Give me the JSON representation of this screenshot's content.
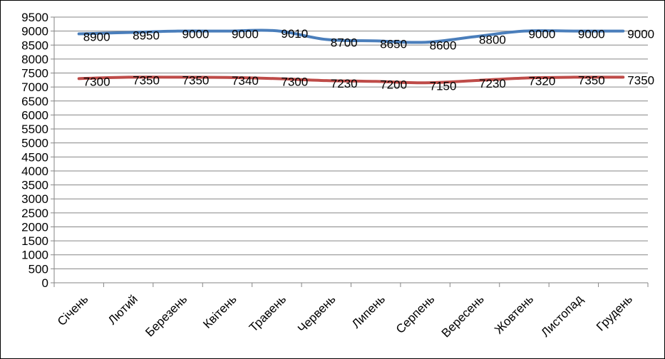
{
  "chart_data": {
    "type": "line",
    "categories": [
      "Січень",
      "Лютий",
      "Березень",
      "Квітень",
      "Травень",
      "Червень",
      "Липень",
      "Серпень",
      "Вересень",
      "Жовтень",
      "Листопад",
      "Грудень"
    ],
    "series": [
      {
        "values": [
          8900,
          8950,
          9000,
          9000,
          9010,
          8700,
          8650,
          8600,
          8800,
          9000,
          9000,
          9000
        ],
        "color": "#4A7EBB",
        "data_labels": [
          "8900",
          "8950",
          "9000",
          "9000",
          "9010",
          "8700",
          "8650",
          "8600",
          "8800",
          "9000",
          "9000",
          "9000"
        ]
      },
      {
        "values": [
          7300,
          7350,
          7350,
          7340,
          7300,
          7230,
          7200,
          7150,
          7230,
          7320,
          7350,
          7350
        ],
        "color": "#BE4B48",
        "data_labels": [
          "7300",
          "7350",
          "7350",
          "7340",
          "7300",
          "7230",
          "7200",
          "7150",
          "7230",
          "7320",
          "7350",
          "7350"
        ]
      }
    ],
    "ylim": [
      0,
      9500
    ],
    "yticks": [
      "0",
      "500",
      "1000",
      "1500",
      "2000",
      "2500",
      "3000",
      "3500",
      "4000",
      "4500",
      "5000",
      "5500",
      "6000",
      "6500",
      "7000",
      "7500",
      "8000",
      "8500",
      "9000",
      "9500"
    ],
    "grid": true,
    "legend": "none",
    "title": "",
    "xlabel": "",
    "ylabel": ""
  }
}
